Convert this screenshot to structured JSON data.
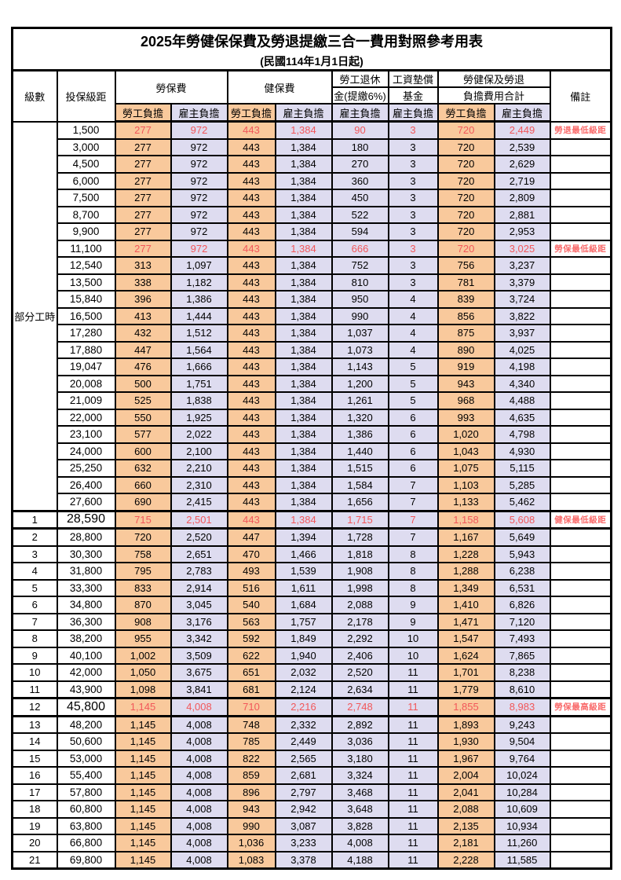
{
  "title": "2025年勞健保保費及勞退提繳三合一費用對照參考用表",
  "subtitle": "(民國114年1月1日起)",
  "header": {
    "level": "級數",
    "bracket": "投保級距",
    "labor_ins": "勞保費",
    "health_ins": "健保費",
    "pension_line1": "勞工退休",
    "pension_line2": "金(提繳6%)",
    "wage_fund_line1": "工資墊償",
    "wage_fund_line2": "基金",
    "total_line1": "勞健保及勞退",
    "total_line2": "負擔費用合計",
    "remark": "備註",
    "employee": "勞工負擔",
    "employer": "雇主負擔"
  },
  "part_time": {
    "label": "部分工時",
    "span": 23
  },
  "colors": {
    "employee_bg": "#F9C99C",
    "employer_bg": "#DEDCF0",
    "highlight_text": "#F2575A",
    "remark_text": "#F96B6B"
  },
  "rows": [
    {
      "level": "",
      "bracket": "1,500",
      "li_e": "277",
      "li_r": "972",
      "hi_e": "443",
      "hi_r": "1,384",
      "pen": "90",
      "fund": "3",
      "tot_e": "720",
      "tot_r": "2,449",
      "remark": "勞退最低級距",
      "red": true,
      "big": false
    },
    {
      "level": "",
      "bracket": "3,000",
      "li_e": "277",
      "li_r": "972",
      "hi_e": "443",
      "hi_r": "1,384",
      "pen": "180",
      "fund": "3",
      "tot_e": "720",
      "tot_r": "2,539",
      "remark": "",
      "red": false,
      "big": false
    },
    {
      "level": "",
      "bracket": "4,500",
      "li_e": "277",
      "li_r": "972",
      "hi_e": "443",
      "hi_r": "1,384",
      "pen": "270",
      "fund": "3",
      "tot_e": "720",
      "tot_r": "2,629",
      "remark": "",
      "red": false,
      "big": false
    },
    {
      "level": "",
      "bracket": "6,000",
      "li_e": "277",
      "li_r": "972",
      "hi_e": "443",
      "hi_r": "1,384",
      "pen": "360",
      "fund": "3",
      "tot_e": "720",
      "tot_r": "2,719",
      "remark": "",
      "red": false,
      "big": false
    },
    {
      "level": "",
      "bracket": "7,500",
      "li_e": "277",
      "li_r": "972",
      "hi_e": "443",
      "hi_r": "1,384",
      "pen": "450",
      "fund": "3",
      "tot_e": "720",
      "tot_r": "2,809",
      "remark": "",
      "red": false,
      "big": false
    },
    {
      "level": "",
      "bracket": "8,700",
      "li_e": "277",
      "li_r": "972",
      "hi_e": "443",
      "hi_r": "1,384",
      "pen": "522",
      "fund": "3",
      "tot_e": "720",
      "tot_r": "2,881",
      "remark": "",
      "red": false,
      "big": false
    },
    {
      "level": "",
      "bracket": "9,900",
      "li_e": "277",
      "li_r": "972",
      "hi_e": "443",
      "hi_r": "1,384",
      "pen": "594",
      "fund": "3",
      "tot_e": "720",
      "tot_r": "2,953",
      "remark": "",
      "red": false,
      "big": false
    },
    {
      "level": "",
      "bracket": "11,100",
      "li_e": "277",
      "li_r": "972",
      "hi_e": "443",
      "hi_r": "1,384",
      "pen": "666",
      "fund": "3",
      "tot_e": "720",
      "tot_r": "3,025",
      "remark": "勞保最低級距",
      "red": true,
      "big": false
    },
    {
      "level": "",
      "bracket": "12,540",
      "li_e": "313",
      "li_r": "1,097",
      "hi_e": "443",
      "hi_r": "1,384",
      "pen": "752",
      "fund": "3",
      "tot_e": "756",
      "tot_r": "3,237",
      "remark": "",
      "red": false,
      "big": false
    },
    {
      "level": "",
      "bracket": "13,500",
      "li_e": "338",
      "li_r": "1,182",
      "hi_e": "443",
      "hi_r": "1,384",
      "pen": "810",
      "fund": "3",
      "tot_e": "781",
      "tot_r": "3,379",
      "remark": "",
      "red": false,
      "big": false
    },
    {
      "level": "",
      "bracket": "15,840",
      "li_e": "396",
      "li_r": "1,386",
      "hi_e": "443",
      "hi_r": "1,384",
      "pen": "950",
      "fund": "4",
      "tot_e": "839",
      "tot_r": "3,724",
      "remark": "",
      "red": false,
      "big": false
    },
    {
      "level": "",
      "bracket": "16,500",
      "li_e": "413",
      "li_r": "1,444",
      "hi_e": "443",
      "hi_r": "1,384",
      "pen": "990",
      "fund": "4",
      "tot_e": "856",
      "tot_r": "3,822",
      "remark": "",
      "red": false,
      "big": false
    },
    {
      "level": "",
      "bracket": "17,280",
      "li_e": "432",
      "li_r": "1,512",
      "hi_e": "443",
      "hi_r": "1,384",
      "pen": "1,037",
      "fund": "4",
      "tot_e": "875",
      "tot_r": "3,937",
      "remark": "",
      "red": false,
      "big": false
    },
    {
      "level": "",
      "bracket": "17,880",
      "li_e": "447",
      "li_r": "1,564",
      "hi_e": "443",
      "hi_r": "1,384",
      "pen": "1,073",
      "fund": "4",
      "tot_e": "890",
      "tot_r": "4,025",
      "remark": "",
      "red": false,
      "big": false
    },
    {
      "level": "",
      "bracket": "19,047",
      "li_e": "476",
      "li_r": "1,666",
      "hi_e": "443",
      "hi_r": "1,384",
      "pen": "1,143",
      "fund": "5",
      "tot_e": "919",
      "tot_r": "4,198",
      "remark": "",
      "red": false,
      "big": false
    },
    {
      "level": "",
      "bracket": "20,008",
      "li_e": "500",
      "li_r": "1,751",
      "hi_e": "443",
      "hi_r": "1,384",
      "pen": "1,200",
      "fund": "5",
      "tot_e": "943",
      "tot_r": "4,340",
      "remark": "",
      "red": false,
      "big": false
    },
    {
      "level": "",
      "bracket": "21,009",
      "li_e": "525",
      "li_r": "1,838",
      "hi_e": "443",
      "hi_r": "1,384",
      "pen": "1,261",
      "fund": "5",
      "tot_e": "968",
      "tot_r": "4,488",
      "remark": "",
      "red": false,
      "big": false
    },
    {
      "level": "",
      "bracket": "22,000",
      "li_e": "550",
      "li_r": "1,925",
      "hi_e": "443",
      "hi_r": "1,384",
      "pen": "1,320",
      "fund": "6",
      "tot_e": "993",
      "tot_r": "4,635",
      "remark": "",
      "red": false,
      "big": false
    },
    {
      "level": "",
      "bracket": "23,100",
      "li_e": "577",
      "li_r": "2,022",
      "hi_e": "443",
      "hi_r": "1,384",
      "pen": "1,386",
      "fund": "6",
      "tot_e": "1,020",
      "tot_r": "4,798",
      "remark": "",
      "red": false,
      "big": false
    },
    {
      "level": "",
      "bracket": "24,000",
      "li_e": "600",
      "li_r": "2,100",
      "hi_e": "443",
      "hi_r": "1,384",
      "pen": "1,440",
      "fund": "6",
      "tot_e": "1,043",
      "tot_r": "4,930",
      "remark": "",
      "red": false,
      "big": false
    },
    {
      "level": "",
      "bracket": "25,250",
      "li_e": "632",
      "li_r": "2,210",
      "hi_e": "443",
      "hi_r": "1,384",
      "pen": "1,515",
      "fund": "6",
      "tot_e": "1,075",
      "tot_r": "5,115",
      "remark": "",
      "red": false,
      "big": false
    },
    {
      "level": "",
      "bracket": "26,400",
      "li_e": "660",
      "li_r": "2,310",
      "hi_e": "443",
      "hi_r": "1,384",
      "pen": "1,584",
      "fund": "7",
      "tot_e": "1,103",
      "tot_r": "5,285",
      "remark": "",
      "red": false,
      "big": false
    },
    {
      "level": "",
      "bracket": "27,600",
      "li_e": "690",
      "li_r": "2,415",
      "hi_e": "443",
      "hi_r": "1,384",
      "pen": "1,656",
      "fund": "7",
      "tot_e": "1,133",
      "tot_r": "5,462",
      "remark": "",
      "red": false,
      "big": false
    },
    {
      "level": "1",
      "bracket": "28,590",
      "li_e": "715",
      "li_r": "2,501",
      "hi_e": "443",
      "hi_r": "1,384",
      "pen": "1,715",
      "fund": "7",
      "tot_e": "1,158",
      "tot_r": "5,608",
      "remark": "健保最低級距",
      "red": true,
      "big": true
    },
    {
      "level": "2",
      "bracket": "28,800",
      "li_e": "720",
      "li_r": "2,520",
      "hi_e": "447",
      "hi_r": "1,394",
      "pen": "1,728",
      "fund": "7",
      "tot_e": "1,167",
      "tot_r": "5,649",
      "remark": "",
      "red": false,
      "big": false
    },
    {
      "level": "3",
      "bracket": "30,300",
      "li_e": "758",
      "li_r": "2,651",
      "hi_e": "470",
      "hi_r": "1,466",
      "pen": "1,818",
      "fund": "8",
      "tot_e": "1,228",
      "tot_r": "5,943",
      "remark": "",
      "red": false,
      "big": false
    },
    {
      "level": "4",
      "bracket": "31,800",
      "li_e": "795",
      "li_r": "2,783",
      "hi_e": "493",
      "hi_r": "1,539",
      "pen": "1,908",
      "fund": "8",
      "tot_e": "1,288",
      "tot_r": "6,238",
      "remark": "",
      "red": false,
      "big": false
    },
    {
      "level": "5",
      "bracket": "33,300",
      "li_e": "833",
      "li_r": "2,914",
      "hi_e": "516",
      "hi_r": "1,611",
      "pen": "1,998",
      "fund": "8",
      "tot_e": "1,349",
      "tot_r": "6,531",
      "remark": "",
      "red": false,
      "big": false
    },
    {
      "level": "6",
      "bracket": "34,800",
      "li_e": "870",
      "li_r": "3,045",
      "hi_e": "540",
      "hi_r": "1,684",
      "pen": "2,088",
      "fund": "9",
      "tot_e": "1,410",
      "tot_r": "6,826",
      "remark": "",
      "red": false,
      "big": false
    },
    {
      "level": "7",
      "bracket": "36,300",
      "li_e": "908",
      "li_r": "3,176",
      "hi_e": "563",
      "hi_r": "1,757",
      "pen": "2,178",
      "fund": "9",
      "tot_e": "1,471",
      "tot_r": "7,120",
      "remark": "",
      "red": false,
      "big": false
    },
    {
      "level": "8",
      "bracket": "38,200",
      "li_e": "955",
      "li_r": "3,342",
      "hi_e": "592",
      "hi_r": "1,849",
      "pen": "2,292",
      "fund": "10",
      "tot_e": "1,547",
      "tot_r": "7,493",
      "remark": "",
      "red": false,
      "big": false
    },
    {
      "level": "9",
      "bracket": "40,100",
      "li_e": "1,002",
      "li_r": "3,509",
      "hi_e": "622",
      "hi_r": "1,940",
      "pen": "2,406",
      "fund": "10",
      "tot_e": "1,624",
      "tot_r": "7,865",
      "remark": "",
      "red": false,
      "big": false
    },
    {
      "level": "10",
      "bracket": "42,000",
      "li_e": "1,050",
      "li_r": "3,675",
      "hi_e": "651",
      "hi_r": "2,032",
      "pen": "2,520",
      "fund": "11",
      "tot_e": "1,701",
      "tot_r": "8,238",
      "remark": "",
      "red": false,
      "big": false
    },
    {
      "level": "11",
      "bracket": "43,900",
      "li_e": "1,098",
      "li_r": "3,841",
      "hi_e": "681",
      "hi_r": "2,124",
      "pen": "2,634",
      "fund": "11",
      "tot_e": "1,779",
      "tot_r": "8,610",
      "remark": "",
      "red": false,
      "big": false
    },
    {
      "level": "12",
      "bracket": "45,800",
      "li_e": "1,145",
      "li_r": "4,008",
      "hi_e": "710",
      "hi_r": "2,216",
      "pen": "2,748",
      "fund": "11",
      "tot_e": "1,855",
      "tot_r": "8,983",
      "remark": "勞保最高級距",
      "red": true,
      "big": true
    },
    {
      "level": "13",
      "bracket": "48,200",
      "li_e": "1,145",
      "li_r": "4,008",
      "hi_e": "748",
      "hi_r": "2,332",
      "pen": "2,892",
      "fund": "11",
      "tot_e": "1,893",
      "tot_r": "9,243",
      "remark": "",
      "red": false,
      "big": false
    },
    {
      "level": "14",
      "bracket": "50,600",
      "li_e": "1,145",
      "li_r": "4,008",
      "hi_e": "785",
      "hi_r": "2,449",
      "pen": "3,036",
      "fund": "11",
      "tot_e": "1,930",
      "tot_r": "9,504",
      "remark": "",
      "red": false,
      "big": false
    },
    {
      "level": "15",
      "bracket": "53,000",
      "li_e": "1,145",
      "li_r": "4,008",
      "hi_e": "822",
      "hi_r": "2,565",
      "pen": "3,180",
      "fund": "11",
      "tot_e": "1,967",
      "tot_r": "9,764",
      "remark": "",
      "red": false,
      "big": false
    },
    {
      "level": "16",
      "bracket": "55,400",
      "li_e": "1,145",
      "li_r": "4,008",
      "hi_e": "859",
      "hi_r": "2,681",
      "pen": "3,324",
      "fund": "11",
      "tot_e": "2,004",
      "tot_r": "10,024",
      "remark": "",
      "red": false,
      "big": false
    },
    {
      "level": "17",
      "bracket": "57,800",
      "li_e": "1,145",
      "li_r": "4,008",
      "hi_e": "896",
      "hi_r": "2,797",
      "pen": "3,468",
      "fund": "11",
      "tot_e": "2,041",
      "tot_r": "10,284",
      "remark": "",
      "red": false,
      "big": false
    },
    {
      "level": "18",
      "bracket": "60,800",
      "li_e": "1,145",
      "li_r": "4,008",
      "hi_e": "943",
      "hi_r": "2,942",
      "pen": "3,648",
      "fund": "11",
      "tot_e": "2,088",
      "tot_r": "10,609",
      "remark": "",
      "red": false,
      "big": false
    },
    {
      "level": "19",
      "bracket": "63,800",
      "li_e": "1,145",
      "li_r": "4,008",
      "hi_e": "990",
      "hi_r": "3,087",
      "pen": "3,828",
      "fund": "11",
      "tot_e": "2,135",
      "tot_r": "10,934",
      "remark": "",
      "red": false,
      "big": false
    },
    {
      "level": "20",
      "bracket": "66,800",
      "li_e": "1,145",
      "li_r": "4,008",
      "hi_e": "1,036",
      "hi_r": "3,233",
      "pen": "4,008",
      "fund": "11",
      "tot_e": "2,181",
      "tot_r": "11,260",
      "remark": "",
      "red": false,
      "big": false
    },
    {
      "level": "21",
      "bracket": "69,800",
      "li_e": "1,145",
      "li_r": "4,008",
      "hi_e": "1,083",
      "hi_r": "3,378",
      "pen": "4,188",
      "fund": "11",
      "tot_e": "2,228",
      "tot_r": "11,585",
      "remark": "",
      "red": false,
      "big": false
    }
  ]
}
